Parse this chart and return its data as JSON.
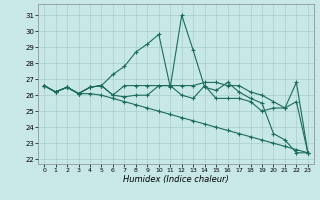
{
  "xlabel": "Humidex (Indice chaleur)",
  "xlim": [
    -0.5,
    23.5
  ],
  "ylim": [
    21.7,
    31.7
  ],
  "yticks": [
    22,
    23,
    24,
    25,
    26,
    27,
    28,
    29,
    30,
    31
  ],
  "xticks": [
    0,
    1,
    2,
    3,
    4,
    5,
    6,
    7,
    8,
    9,
    10,
    11,
    12,
    13,
    14,
    15,
    16,
    17,
    18,
    19,
    20,
    21,
    22,
    23
  ],
  "bg_color": "#c8e8e8",
  "grid_color": "#a8cccc",
  "line_color": "#1a6b5a",
  "series": [
    {
      "x": [
        0,
        1,
        2,
        3,
        4,
        5,
        6,
        7,
        8,
        9,
        10,
        11,
        12,
        13,
        14,
        15,
        16,
        17,
        18,
        19,
        20,
        21,
        22,
        23
      ],
      "y": [
        26.6,
        26.2,
        26.5,
        26.1,
        26.5,
        26.6,
        27.3,
        27.8,
        28.7,
        29.2,
        29.8,
        26.5,
        31.0,
        28.8,
        26.5,
        26.3,
        26.8,
        26.2,
        25.8,
        25.5,
        23.6,
        23.2,
        22.4,
        22.4
      ]
    },
    {
      "x": [
        0,
        1,
        2,
        3,
        4,
        5,
        6,
        7,
        8,
        9,
        10,
        11,
        12,
        13,
        14,
        15,
        16,
        17,
        18,
        19,
        20,
        21,
        22,
        23
      ],
      "y": [
        26.6,
        26.2,
        26.5,
        26.1,
        26.5,
        26.6,
        26.0,
        26.6,
        26.6,
        26.6,
        26.6,
        26.6,
        26.6,
        26.6,
        26.8,
        26.8,
        26.6,
        26.6,
        26.2,
        26.0,
        25.6,
        25.2,
        26.8,
        22.4
      ]
    },
    {
      "x": [
        0,
        1,
        2,
        3,
        4,
        5,
        6,
        7,
        8,
        9,
        10,
        11,
        12,
        13,
        14,
        15,
        16,
        17,
        18,
        19,
        20,
        21,
        22,
        23
      ],
      "y": [
        26.6,
        26.2,
        26.5,
        26.1,
        26.5,
        26.6,
        26.0,
        25.9,
        26.0,
        26.0,
        26.6,
        26.6,
        26.0,
        25.8,
        26.6,
        25.8,
        25.8,
        25.8,
        25.6,
        25.0,
        25.2,
        25.2,
        25.6,
        22.4
      ]
    },
    {
      "x": [
        0,
        1,
        2,
        3,
        4,
        5,
        6,
        7,
        8,
        9,
        10,
        11,
        12,
        13,
        14,
        15,
        16,
        17,
        18,
        19,
        20,
        21,
        22,
        23
      ],
      "y": [
        26.6,
        26.2,
        26.5,
        26.1,
        26.1,
        26.0,
        25.8,
        25.6,
        25.4,
        25.2,
        25.0,
        24.8,
        24.6,
        24.4,
        24.2,
        24.0,
        23.8,
        23.6,
        23.4,
        23.2,
        23.0,
        22.8,
        22.6,
        22.4
      ]
    }
  ]
}
